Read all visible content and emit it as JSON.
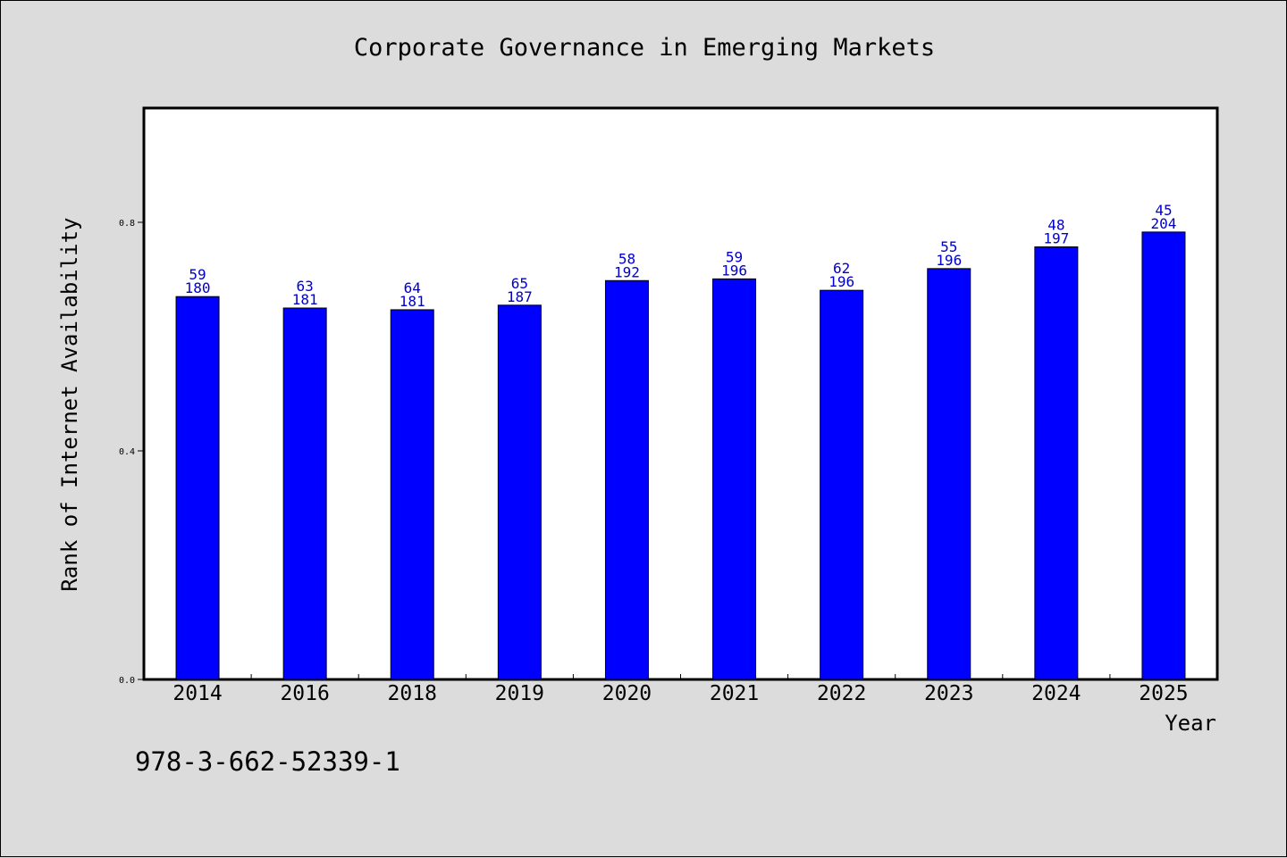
{
  "chart_data": {
    "type": "bar",
    "title": "Corporate Governance in Emerging Markets",
    "xlabel": "Year",
    "ylabel": "Rank of Internet Availability",
    "categories": [
      "2014",
      "2016",
      "2018",
      "2019",
      "2020",
      "2021",
      "2022",
      "2023",
      "2024",
      "2025"
    ],
    "values": [
      0.67,
      0.65,
      0.647,
      0.655,
      0.698,
      0.701,
      0.681,
      0.719,
      0.757,
      0.783
    ],
    "bar_labels_top": [
      "59",
      "63",
      "64",
      "65",
      "58",
      "59",
      "62",
      "55",
      "48",
      "45"
    ],
    "bar_labels_bottom": [
      "180",
      "181",
      "181",
      "187",
      "192",
      "196",
      "196",
      "196",
      "197",
      "204"
    ],
    "ylim": [
      0,
      1.0
    ],
    "yticks": [
      0.0,
      0.4,
      0.8
    ],
    "ytick_labels": [
      "0.0",
      "0.4",
      "0.8"
    ],
    "grid": false,
    "bar_color": "#0000ff",
    "label_color": "#0000cc",
    "background": "#dcdcdc",
    "plot_background": "#ffffff"
  },
  "footer": {
    "isbn": "978-3-662-52339-1"
  }
}
